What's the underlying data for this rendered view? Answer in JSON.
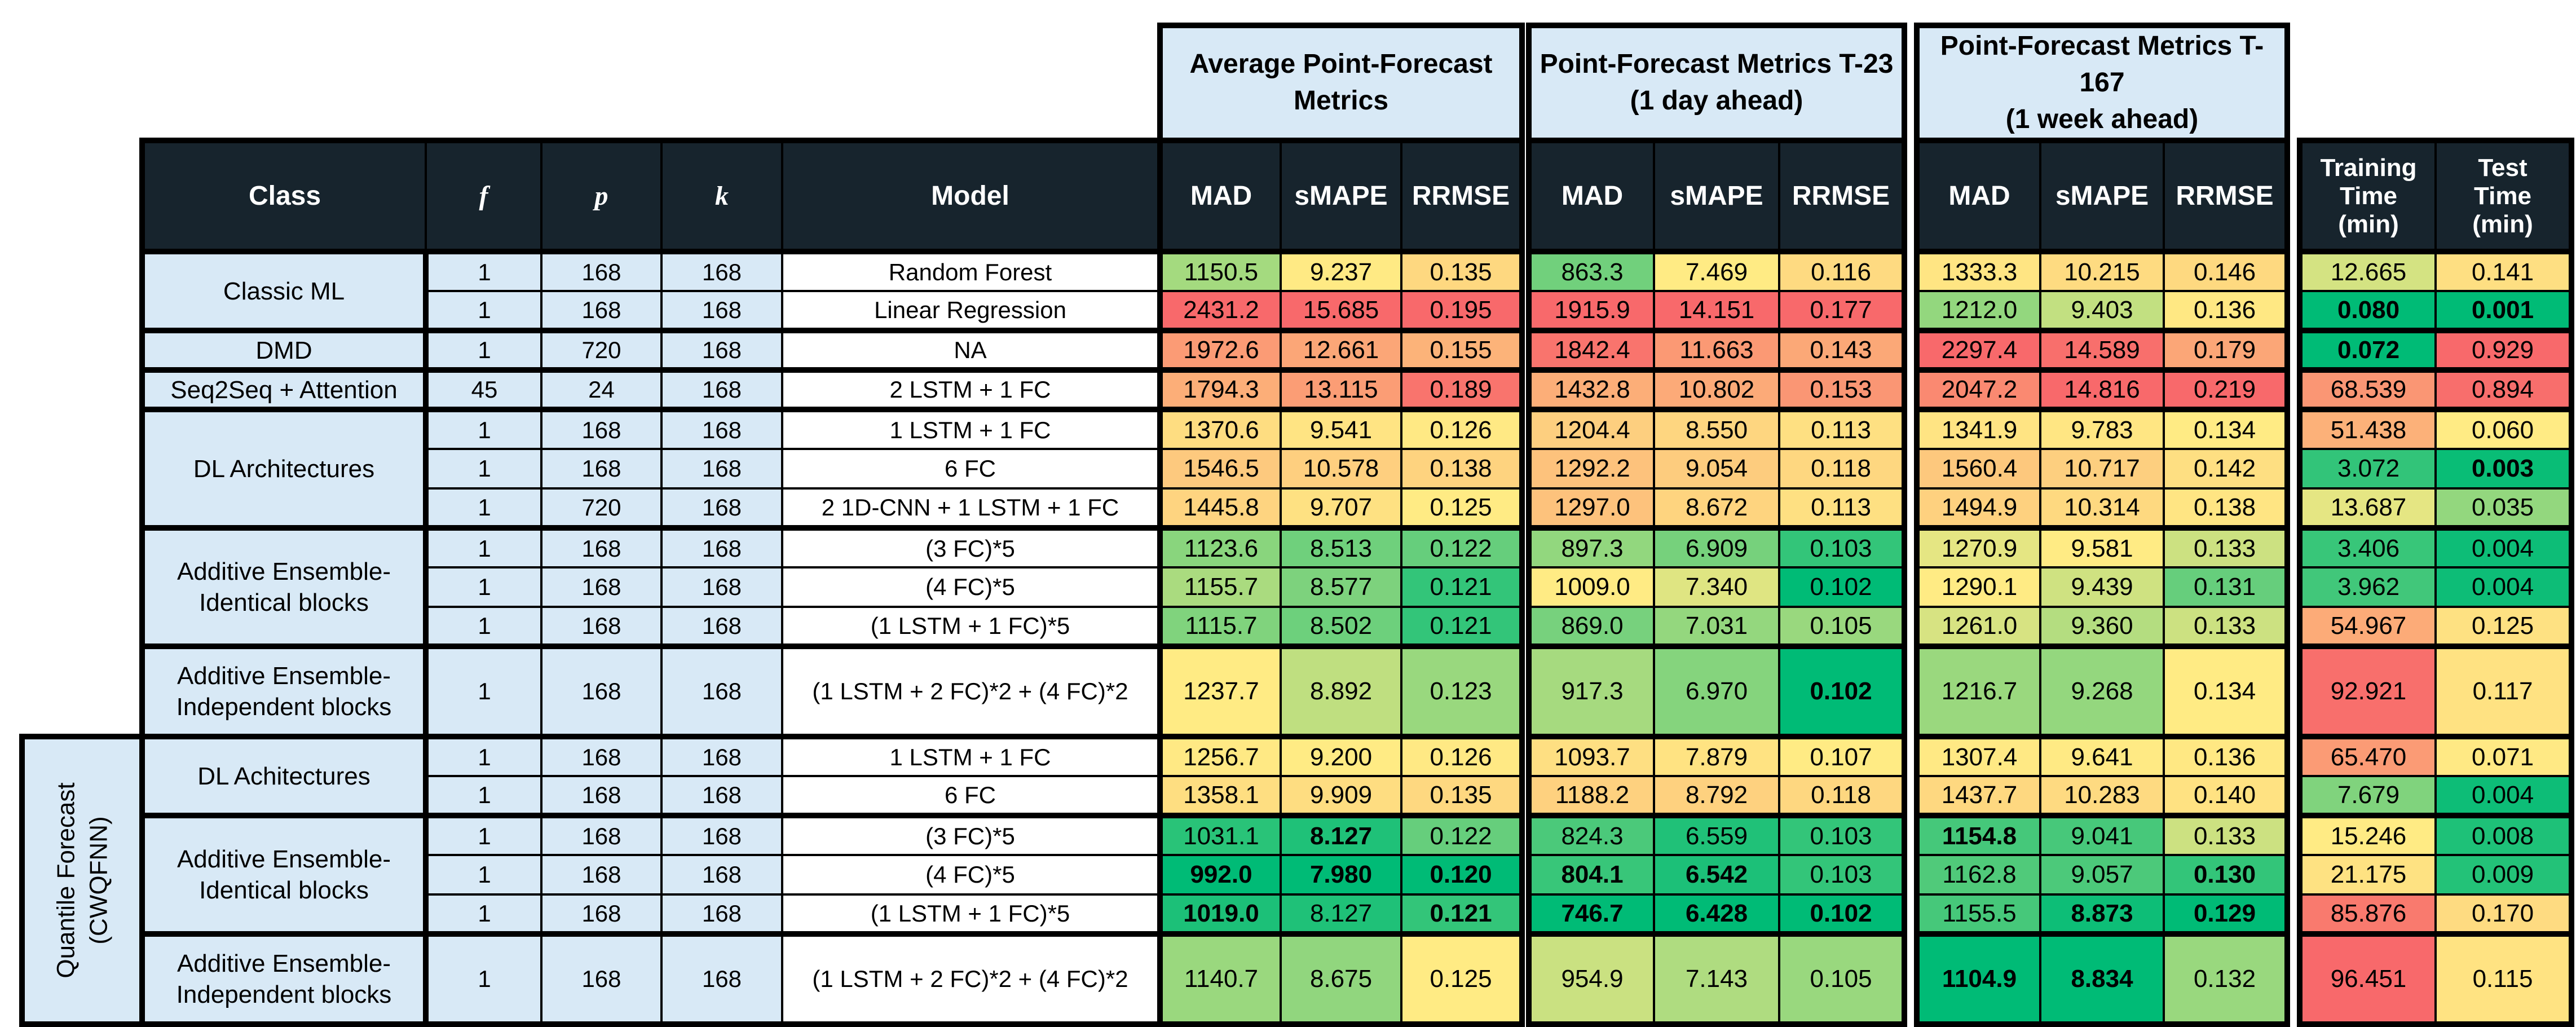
{
  "colors": {
    "scale_min_green": "#00BB76",
    "scale_mid_yellow": "#FFEB84",
    "scale_max_red": "#F8696B",
    "header_bg": "#17242D",
    "header_text": "#FFFFFF",
    "band_bg": "#D8E9F6",
    "cell_bg": "#FFFFFF",
    "border": "#000000"
  },
  "side_label": {
    "line1": "Quantile Forecast",
    "line2": "(CWQFNN)"
  },
  "chart_data": {
    "type": "table",
    "title": "Point-forecast metrics comparison of forecasting models",
    "color_scale": {
      "style": "3-color scale per metric column",
      "min_color": "#00BB76",
      "mid_color": "#FFEB84",
      "max_color": "#F8696B",
      "midpoint": "median of column"
    },
    "column_group_headers": [
      {
        "line1": "Average Point-Forecast",
        "line2": "Metrics"
      },
      {
        "line1": "Point-Forecast Metrics T-23",
        "line2": "(1 day ahead)"
      },
      {
        "line1": "Point-Forecast Metrics T-167",
        "line2": "(1 week ahead)"
      }
    ],
    "column_headers": {
      "class": "Class",
      "f": "f",
      "p": "p",
      "k": "k",
      "model": "Model",
      "metric_names": [
        "MAD",
        "sMAPE",
        "RRMSE"
      ],
      "training": [
        "Training",
        "Time",
        "(min)"
      ],
      "test": [
        "Test",
        "Time",
        "(min)"
      ]
    },
    "class_groups": [
      {
        "label": [
          "Classic ML"
        ],
        "rows": 2,
        "tall": false,
        "quantile": false
      },
      {
        "label": [
          "DMD"
        ],
        "rows": 1,
        "tall": false,
        "quantile": false
      },
      {
        "label": [
          "Seq2Seq + Attention"
        ],
        "rows": 1,
        "tall": false,
        "quantile": false
      },
      {
        "label": [
          "DL Architectures"
        ],
        "rows": 3,
        "tall": false,
        "quantile": false
      },
      {
        "label": [
          "Additive Ensemble-",
          "Identical blocks"
        ],
        "rows": 3,
        "tall": false,
        "quantile": false
      },
      {
        "label": [
          "Additive Ensemble-",
          "Independent blocks"
        ],
        "rows": 1,
        "tall": true,
        "quantile": false
      },
      {
        "label": [
          "DL Achitectures"
        ],
        "rows": 2,
        "tall": false,
        "quantile": true
      },
      {
        "label": [
          "Additive Ensemble-",
          "Identical blocks"
        ],
        "rows": 3,
        "tall": false,
        "quantile": true
      },
      {
        "label": [
          "Additive Ensemble-",
          "Independent blocks"
        ],
        "rows": 1,
        "tall": true,
        "quantile": true
      }
    ],
    "value_column_keys": [
      "avg_MAD",
      "avg_sMAPE",
      "avg_RRMSE",
      "t23_MAD",
      "t23_sMAPE",
      "t23_RRMSE",
      "t167_MAD",
      "t167_sMAPE",
      "t167_RRMSE",
      "training_time_min",
      "test_time_min"
    ],
    "rows": [
      {
        "f": "1",
        "p": "168",
        "k": "168",
        "model": "Random Forest",
        "values": [
          "1150.5",
          "9.237",
          "0.135",
          "863.3",
          "7.469",
          "0.116",
          "1333.3",
          "10.215",
          "0.146",
          "12.665",
          "0.141"
        ],
        "bold": []
      },
      {
        "f": "1",
        "p": "168",
        "k": "168",
        "model": "Linear Regression",
        "values": [
          "2431.2",
          "15.685",
          "0.195",
          "1915.9",
          "14.151",
          "0.177",
          "1212.0",
          "9.403",
          "0.136",
          "0.080",
          "0.001"
        ],
        "bold": [
          9,
          10
        ]
      },
      {
        "f": "1",
        "p": "720",
        "k": "168",
        "model": "NA",
        "values": [
          "1972.6",
          "12.661",
          "0.155",
          "1842.4",
          "11.663",
          "0.143",
          "2297.4",
          "14.589",
          "0.179",
          "0.072",
          "0.929"
        ],
        "bold": [
          9
        ]
      },
      {
        "f": "45",
        "p": "24",
        "k": "168",
        "model": "2 LSTM + 1 FC",
        "values": [
          "1794.3",
          "13.115",
          "0.189",
          "1432.8",
          "10.802",
          "0.153",
          "2047.2",
          "14.816",
          "0.219",
          "68.539",
          "0.894"
        ],
        "bold": []
      },
      {
        "f": "1",
        "p": "168",
        "k": "168",
        "model": "1 LSTM + 1 FC",
        "values": [
          "1370.6",
          "9.541",
          "0.126",
          "1204.4",
          "8.550",
          "0.113",
          "1341.9",
          "9.783",
          "0.134",
          "51.438",
          "0.060"
        ],
        "bold": []
      },
      {
        "f": "1",
        "p": "168",
        "k": "168",
        "model": "6 FC",
        "values": [
          "1546.5",
          "10.578",
          "0.138",
          "1292.2",
          "9.054",
          "0.118",
          "1560.4",
          "10.717",
          "0.142",
          "3.072",
          "0.003"
        ],
        "bold": [
          10
        ]
      },
      {
        "f": "1",
        "p": "720",
        "k": "168",
        "model": "2 1D-CNN + 1 LSTM + 1 FC",
        "values": [
          "1445.8",
          "9.707",
          "0.125",
          "1297.0",
          "8.672",
          "0.113",
          "1494.9",
          "10.314",
          "0.138",
          "13.687",
          "0.035"
        ],
        "bold": []
      },
      {
        "f": "1",
        "p": "168",
        "k": "168",
        "model": "(3 FC)*5",
        "values": [
          "1123.6",
          "8.513",
          "0.122",
          "897.3",
          "6.909",
          "0.103",
          "1270.9",
          "9.581",
          "0.133",
          "3.406",
          "0.004"
        ],
        "bold": []
      },
      {
        "f": "1",
        "p": "168",
        "k": "168",
        "model": "(4 FC)*5",
        "values": [
          "1155.7",
          "8.577",
          "0.121",
          "1009.0",
          "7.340",
          "0.102",
          "1290.1",
          "9.439",
          "0.131",
          "3.962",
          "0.004"
        ],
        "bold": []
      },
      {
        "f": "1",
        "p": "168",
        "k": "168",
        "model": "(1 LSTM + 1 FC)*5",
        "values": [
          "1115.7",
          "8.502",
          "0.121",
          "869.0",
          "7.031",
          "0.105",
          "1261.0",
          "9.360",
          "0.133",
          "54.967",
          "0.125"
        ],
        "bold": []
      },
      {
        "f": "1",
        "p": "168",
        "k": "168",
        "model": "(1 LSTM + 2 FC)*2 + (4 FC)*2",
        "values": [
          "1237.7",
          "8.892",
          "0.123",
          "917.3",
          "6.970",
          "0.102",
          "1216.7",
          "9.268",
          "0.134",
          "92.921",
          "0.117"
        ],
        "bold": [
          5
        ]
      },
      {
        "f": "1",
        "p": "168",
        "k": "168",
        "model": "1 LSTM + 1 FC",
        "values": [
          "1256.7",
          "9.200",
          "0.126",
          "1093.7",
          "7.879",
          "0.107",
          "1307.4",
          "9.641",
          "0.136",
          "65.470",
          "0.071"
        ],
        "bold": []
      },
      {
        "f": "1",
        "p": "168",
        "k": "168",
        "model": "6 FC",
        "values": [
          "1358.1",
          "9.909",
          "0.135",
          "1188.2",
          "8.792",
          "0.118",
          "1437.7",
          "10.283",
          "0.140",
          "7.679",
          "0.004"
        ],
        "bold": []
      },
      {
        "f": "1",
        "p": "168",
        "k": "168",
        "model": "(3 FC)*5",
        "values": [
          "1031.1",
          "8.127",
          "0.122",
          "824.3",
          "6.559",
          "0.103",
          "1154.8",
          "9.041",
          "0.133",
          "15.246",
          "0.008"
        ],
        "bold": [
          1,
          6
        ]
      },
      {
        "f": "1",
        "p": "168",
        "k": "168",
        "model": "(4 FC)*5",
        "values": [
          "992.0",
          "7.980",
          "0.120",
          "804.1",
          "6.542",
          "0.103",
          "1162.8",
          "9.057",
          "0.130",
          "21.175",
          "0.009"
        ],
        "bold": [
          0,
          1,
          2,
          3,
          4,
          8
        ]
      },
      {
        "f": "1",
        "p": "168",
        "k": "168",
        "model": "(1 LSTM + 1 FC)*5",
        "values": [
          "1019.0",
          "8.127",
          "0.121",
          "746.7",
          "6.428",
          "0.102",
          "1155.5",
          "8.873",
          "0.129",
          "85.876",
          "0.170"
        ],
        "bold": [
          0,
          2,
          3,
          4,
          5,
          7,
          8
        ]
      },
      {
        "f": "1",
        "p": "168",
        "k": "168",
        "model": "(1 LSTM + 2 FC)*2 + (4 FC)*2",
        "values": [
          "1140.7",
          "8.675",
          "0.125",
          "954.9",
          "7.143",
          "0.105",
          "1104.9",
          "8.834",
          "0.132",
          "96.451",
          "0.115"
        ],
        "bold": [
          6,
          7
        ]
      }
    ]
  }
}
